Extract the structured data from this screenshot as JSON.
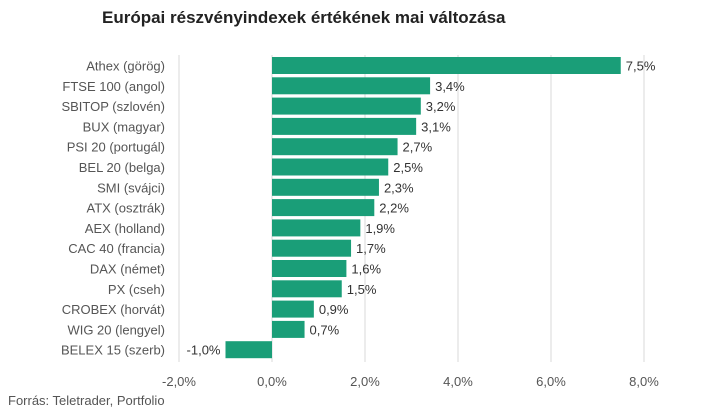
{
  "chart_data": {
    "type": "bar",
    "orientation": "horizontal",
    "title": "Európai részvényindexek értékének mai változása",
    "categories": [
      "Athex (görög)",
      "FTSE 100 (angol)",
      "SBITOP (szlovén)",
      "BUX (magyar)",
      "PSI 20 (portugál)",
      "BEL 20 (belga)",
      "SMI (svájci)",
      "ATX (osztrák)",
      "AEX (holland)",
      "CAC 40 (francia)",
      "DAX (német)",
      "PX (cseh)",
      "CROBEX (horvát)",
      "WIG 20 (lengyel)",
      "BELEX 15 (szerb)"
    ],
    "values": [
      7.5,
      3.4,
      3.2,
      3.1,
      2.7,
      2.5,
      2.3,
      2.2,
      1.9,
      1.7,
      1.6,
      1.5,
      0.9,
      0.7,
      -1.0
    ],
    "value_labels": [
      "7,5%",
      "3,4%",
      "3,2%",
      "3,1%",
      "2,7%",
      "2,5%",
      "2,3%",
      "2,2%",
      "1,9%",
      "1,7%",
      "1,6%",
      "1,5%",
      "0,9%",
      "0,7%",
      "-1,0%"
    ],
    "xlim": [
      -2.0,
      8.0
    ],
    "x_ticks": [
      -2.0,
      0.0,
      2.0,
      4.0,
      6.0,
      8.0
    ],
    "x_tick_labels": [
      "-2,0%",
      "0,0%",
      "2,0%",
      "4,0%",
      "6,0%",
      "8,0%"
    ],
    "grid": true,
    "bar_color": "#1a9e78",
    "grid_color": "#d9d9d9"
  },
  "footer": {
    "source": "Forrás: Teletrader, Portfolio"
  }
}
